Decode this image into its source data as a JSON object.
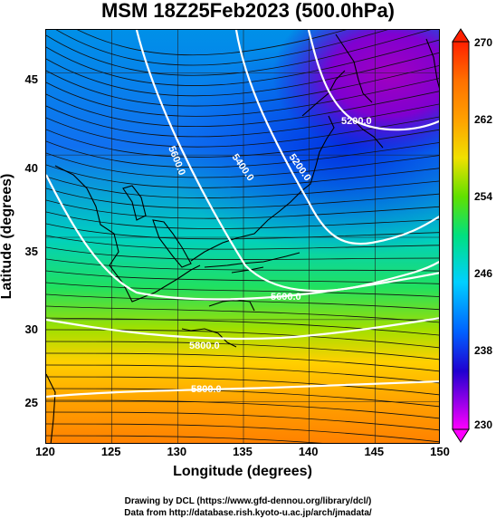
{
  "title": "MSM 18Z25Feb2023 (500.0hPa)",
  "axes": {
    "xlabel": "Longitude (degrees)",
    "ylabel": "Latitude  (degrees)",
    "xticks": [
      "120",
      "125",
      "130",
      "135",
      "140",
      "145",
      "150"
    ],
    "yticks": [
      "45",
      "40",
      "35",
      "30",
      "25"
    ]
  },
  "colorbar": {
    "ticks": [
      "270",
      "262",
      "254",
      "246",
      "238",
      "230"
    ],
    "colors": [
      "#ff00ff",
      "#3000e0",
      "#0040ff",
      "#00c8ff",
      "#00e080",
      "#40e000",
      "#c0f000",
      "#ffa000",
      "#ff6000",
      "#ff3000"
    ]
  },
  "contour_labels": [
    "5200.0",
    "5400.0",
    "5600.0",
    "5200.0",
    "5600.0",
    "5800.0",
    "5800.0"
  ],
  "credits": {
    "line1": "Drawing by DCL (https://www.gfd-dennou.org/library/dcl/)",
    "line2": "Data from http://database.rish.kyoto-u.ac.jp/arch/jmadata/"
  },
  "chart_data": {
    "type": "heatmap",
    "title": "MSM 18Z25Feb2023 (500.0hPa)",
    "xlabel": "Longitude (degrees)",
    "ylabel": "Latitude  (degrees)",
    "xlim": [
      120,
      150
    ],
    "ylim": [
      22.4,
      47.6
    ],
    "colorbar_range": [
      230,
      270
    ],
    "colorbar_ticks": [
      230,
      238,
      246,
      254,
      262,
      270
    ],
    "contour_levels": [
      5200,
      5400,
      5600,
      5800
    ]
  }
}
